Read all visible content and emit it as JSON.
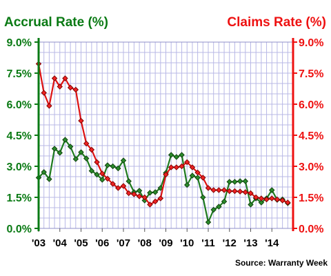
{
  "chart_data": {
    "type": "line",
    "source": "Source: Warranty Week",
    "colors": {
      "left": "#0a7a14",
      "right": "#ee1111",
      "grid": "#b8b8e6",
      "accrual_line": "#1e7a1e",
      "claims_line": "#dd1111"
    },
    "left_axis": {
      "title": "Accrual Rate (%)",
      "ticks": [
        "0.0%",
        "1.5%",
        "3.0%",
        "4.5%",
        "6.0%",
        "7.5%",
        "9.0%"
      ],
      "range": [
        0,
        9
      ]
    },
    "right_axis": {
      "title": "Claims Rate (%)",
      "ticks": [
        "0.0%",
        "1.5%",
        "3.0%",
        "4.5%",
        "6.0%",
        "7.5%",
        "9.0%"
      ],
      "range": [
        0,
        9
      ]
    },
    "x_axis": {
      "tick_labels": [
        "'03",
        "'04",
        "'05",
        "'06",
        "'07",
        "'08",
        "'09",
        "'10",
        "'11",
        "'12",
        "'13",
        "'14"
      ],
      "range": [
        2003,
        2015
      ],
      "grid": "quarterly"
    },
    "series": [
      {
        "axis": "left",
        "x": [
          2003.0,
          2003.25,
          2003.5,
          2003.75,
          2004.0,
          2004.25,
          2004.5,
          2004.75,
          2005.0,
          2005.25,
          2005.5,
          2005.75,
          2006.0,
          2006.25,
          2006.5,
          2006.75,
          2007.0,
          2007.25,
          2007.5,
          2007.75,
          2008.0,
          2008.25,
          2008.5,
          2008.75,
          2009.0,
          2009.25,
          2009.5,
          2009.75,
          2010.0,
          2010.25,
          2010.5,
          2010.75,
          2011.0,
          2011.25,
          2011.5,
          2011.75,
          2012.0,
          2012.25,
          2012.5,
          2012.75,
          2013.0,
          2013.25,
          2013.5,
          2013.75,
          2014.0,
          2014.25,
          2014.5,
          2014.75
        ],
        "values": [
          2.45,
          2.72,
          2.38,
          3.85,
          3.65,
          4.28,
          3.95,
          3.35,
          3.68,
          3.38,
          2.78,
          2.6,
          2.35,
          3.05,
          3.0,
          2.9,
          3.28,
          2.28,
          1.75,
          1.82,
          1.35,
          1.72,
          1.75,
          1.95,
          2.68,
          3.55,
          3.45,
          3.55,
          2.1,
          2.55,
          2.45,
          1.5,
          0.3,
          0.9,
          1.05,
          1.3,
          2.25,
          2.25,
          2.28,
          2.28,
          1.15,
          1.45,
          1.25,
          1.45,
          1.85,
          1.38,
          1.4,
          1.22
        ]
      },
      {
        "axis": "right",
        "x": [
          2003.0,
          2003.25,
          2003.5,
          2003.75,
          2004.0,
          2004.25,
          2004.5,
          2004.75,
          2005.0,
          2005.25,
          2005.5,
          2005.75,
          2006.0,
          2006.25,
          2006.5,
          2006.75,
          2007.0,
          2007.25,
          2007.5,
          2007.75,
          2008.0,
          2008.25,
          2008.5,
          2008.75,
          2009.0,
          2009.25,
          2009.5,
          2009.75,
          2010.0,
          2010.25,
          2010.5,
          2010.75,
          2011.0,
          2011.25,
          2011.5,
          2011.75,
          2012.0,
          2012.25,
          2012.5,
          2012.75,
          2013.0,
          2013.25,
          2013.5,
          2013.75,
          2014.0,
          2014.25,
          2014.5,
          2014.75
        ],
        "values": [
          7.95,
          6.55,
          5.92,
          7.25,
          6.85,
          7.25,
          6.8,
          6.7,
          5.2,
          4.1,
          3.8,
          3.2,
          2.65,
          2.4,
          2.15,
          1.95,
          2.05,
          1.7,
          1.65,
          1.55,
          1.5,
          1.15,
          1.3,
          1.45,
          2.6,
          2.95,
          2.95,
          3.0,
          3.2,
          2.95,
          2.7,
          2.45,
          1.95,
          1.85,
          1.85,
          1.85,
          1.8,
          1.8,
          1.78,
          1.75,
          1.7,
          1.5,
          1.45,
          1.4,
          1.45,
          1.4,
          1.35,
          1.25
        ]
      }
    ]
  }
}
